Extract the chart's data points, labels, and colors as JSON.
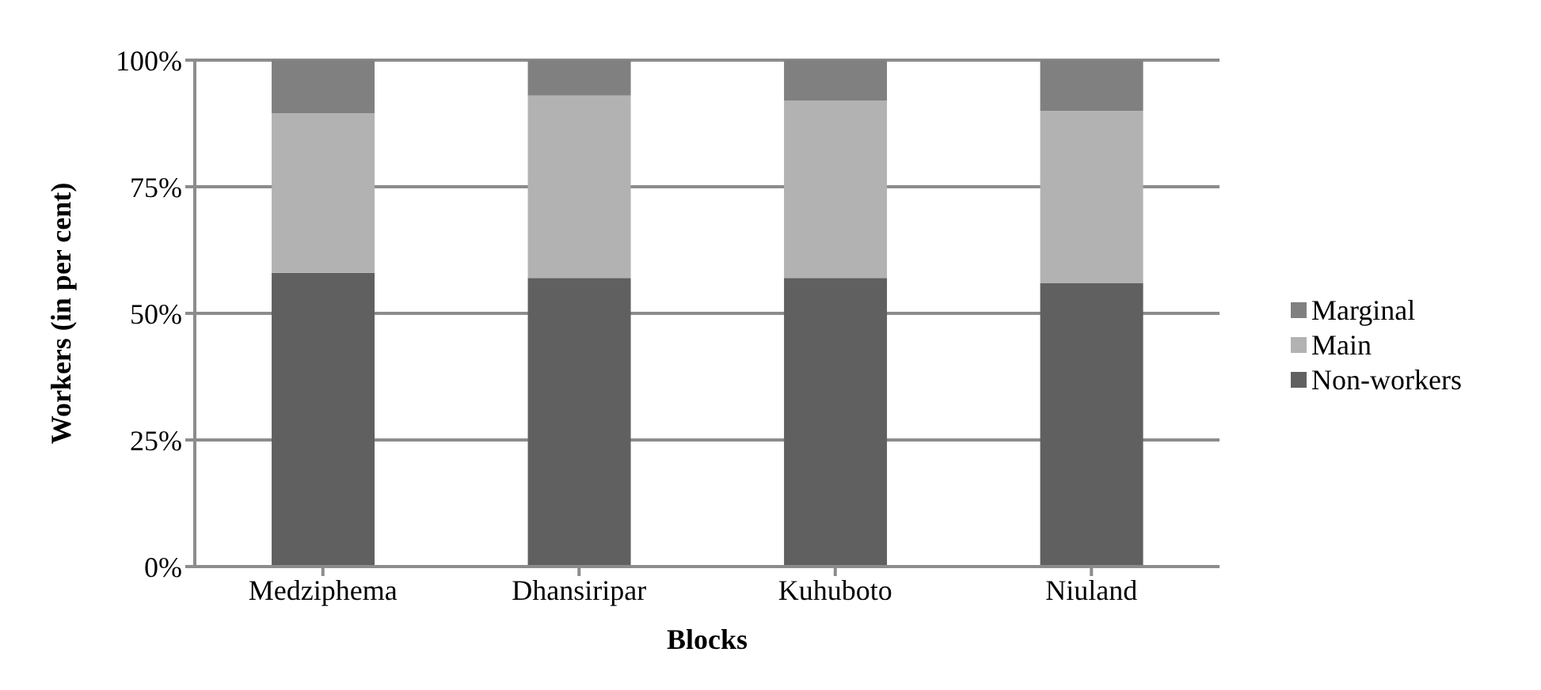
{
  "chart_data": {
    "type": "bar",
    "stacked": true,
    "xlabel": "Blocks",
    "ylabel": "Workers (in per cent)",
    "categories": [
      "Medziphema",
      "Dhansiripar",
      "Kuhuboto",
      "Niuland"
    ],
    "series": [
      {
        "name": "Non-workers",
        "color": "#606060",
        "values": [
          58,
          57,
          57,
          56
        ]
      },
      {
        "name": "Main",
        "color": "#b2b2b2",
        "values": [
          31.5,
          36,
          35,
          34
        ]
      },
      {
        "name": "Marginal",
        "color": "#808080",
        "values": [
          10.5,
          7,
          8,
          10
        ]
      }
    ],
    "ylim": [
      0,
      100
    ],
    "yticks": [
      {
        "value": 0,
        "label": "0%"
      },
      {
        "value": 25,
        "label": "25%"
      },
      {
        "value": 50,
        "label": "50%"
      },
      {
        "value": 75,
        "label": "75%"
      },
      {
        "value": 100,
        "label": "100%"
      }
    ],
    "grid": "y",
    "legend": "right"
  }
}
